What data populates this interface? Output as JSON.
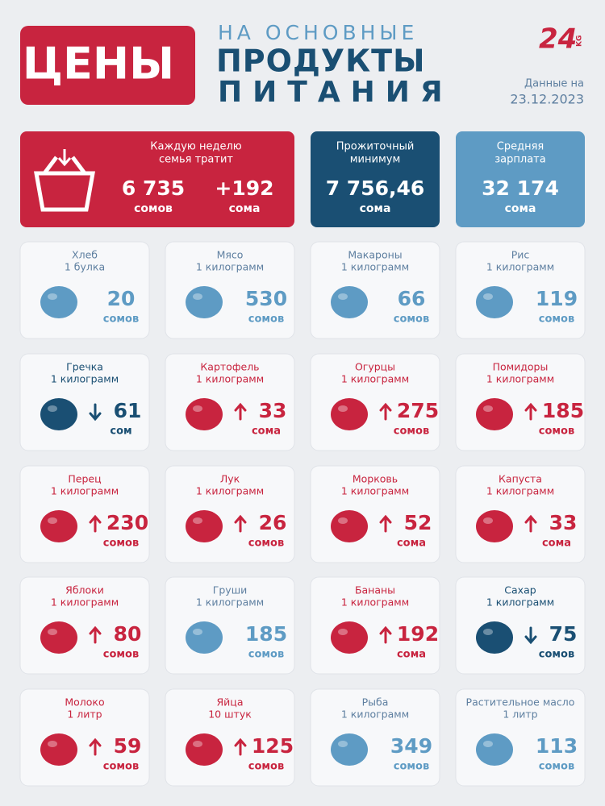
{
  "header": {
    "title": "ЦЕНЫ",
    "subtitle_line1": "НА ОСНОВНЫЕ",
    "subtitle_line2": "ПРОДУКТЫ",
    "subtitle_line3": "ПИТАНИЯ",
    "logo": "24",
    "logo_suffix": "KG",
    "date_label": "Данные на",
    "date": "23.12.2023"
  },
  "summary": [
    {
      "label_line1": "Каждую неделю",
      "label_line2": "семья тратит",
      "amount": "6 735",
      "unit": "сомов",
      "change": "+192",
      "change_unit": "сома"
    },
    {
      "label_line1": "Прожиточный",
      "label_line2": "минимум",
      "amount": "7 756,46",
      "unit": "сома"
    },
    {
      "label_line1": "Средняя",
      "label_line2": "зарплата",
      "amount": "32 174",
      "unit": "сома"
    }
  ],
  "items": [
    {
      "name": "Хлеб",
      "amount": "1 булка",
      "price": 20,
      "unit": "сомов",
      "trend": "none"
    },
    {
      "name": "Мясо",
      "amount": "1 килограмм",
      "price": 530,
      "unit": "сомов",
      "trend": "none"
    },
    {
      "name": "Макароны",
      "amount": "1 килограмм",
      "price": 66,
      "unit": "сомов",
      "trend": "none"
    },
    {
      "name": "Рис",
      "amount": "1 килограмм",
      "price": 119,
      "unit": "сомов",
      "trend": "none"
    },
    {
      "name": "Гречка",
      "amount": "1 килограмм",
      "price": 61,
      "unit": "сом",
      "trend": "down"
    },
    {
      "name": "Картофель",
      "amount": "1 килограмм",
      "price": 33,
      "unit": "сома",
      "trend": "up"
    },
    {
      "name": "Огурцы",
      "amount": "1 килограмм",
      "price": 275,
      "unit": "сомов",
      "trend": "up"
    },
    {
      "name": "Помидоры",
      "amount": "1 килограмм",
      "price": 185,
      "unit": "сомов",
      "trend": "up"
    },
    {
      "name": "Перец",
      "amount": "1 килограмм",
      "price": 230,
      "unit": "сомов",
      "trend": "up"
    },
    {
      "name": "Лук",
      "amount": "1 килограмм",
      "price": 26,
      "unit": "сомов",
      "trend": "up"
    },
    {
      "name": "Морковь",
      "amount": "1 килограмм",
      "price": 52,
      "unit": "сома",
      "trend": "up"
    },
    {
      "name": "Капуста",
      "amount": "1 килограмм",
      "price": 33,
      "unit": "сома",
      "trend": "up"
    },
    {
      "name": "Яблоки",
      "amount": "1 килограмм",
      "price": 80,
      "unit": "сомов",
      "trend": "up"
    },
    {
      "name": "Груши",
      "amount": "1 килограмм",
      "price": 185,
      "unit": "сомов",
      "trend": "none"
    },
    {
      "name": "Бананы",
      "amount": "1 килограмм",
      "price": 192,
      "unit": "сома",
      "trend": "up"
    },
    {
      "name": "Сахар",
      "amount": "1 килограмм",
      "price": 75,
      "unit": "сомов",
      "trend": "down"
    },
    {
      "name": "Молоко",
      "amount": "1 литр",
      "price": 59,
      "unit": "сомов",
      "trend": "up"
    },
    {
      "name": "Яйца",
      "amount": "10 штук",
      "price": 125,
      "unit": "сомов",
      "trend": "up"
    },
    {
      "name": "Рыба",
      "amount": "1 килограмм",
      "price": 349,
      "unit": "сомов",
      "trend": "none"
    },
    {
      "name": "Растительное масло",
      "amount": "1 литр",
      "price": 113,
      "unit": "сомов",
      "trend": "none"
    }
  ]
}
